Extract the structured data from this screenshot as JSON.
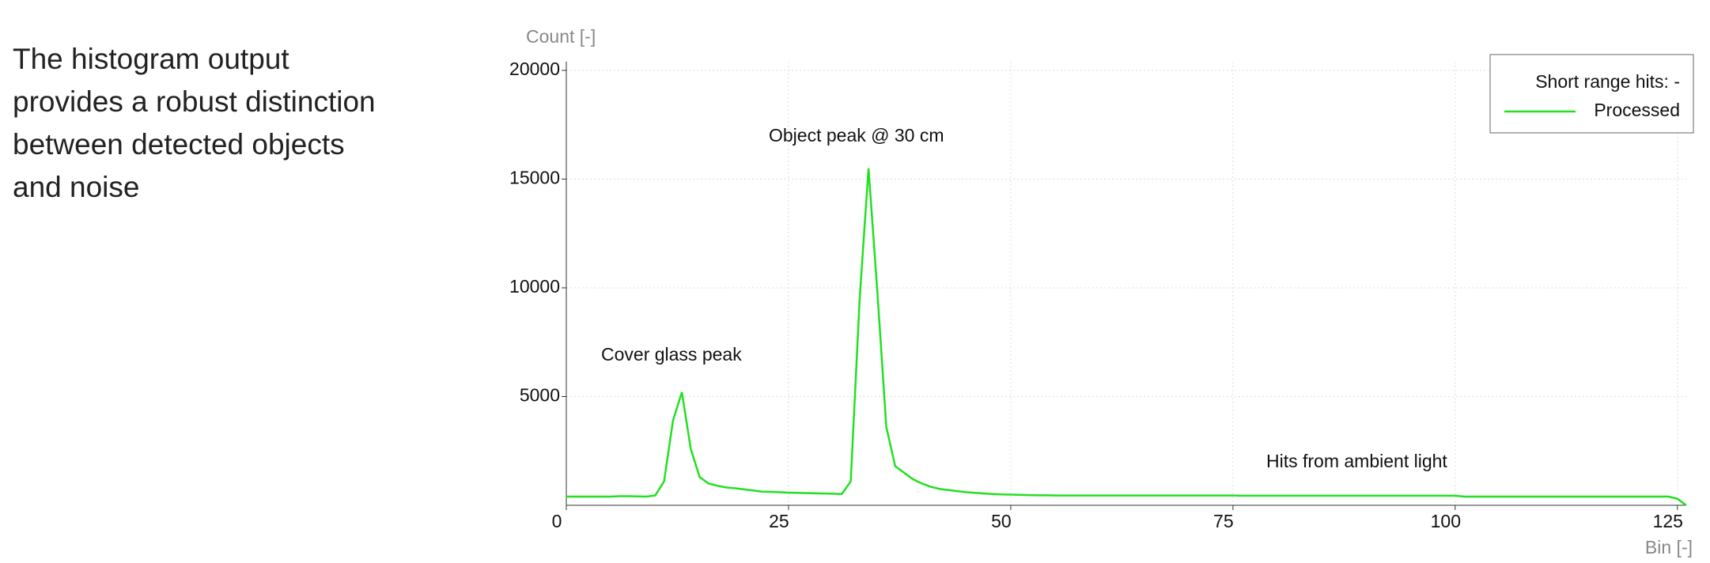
{
  "caption": [
    "The histogram output",
    "provides a robust distinction",
    "between detected objects",
    "and noise"
  ],
  "chart_data": {
    "type": "line",
    "y_label": "Count [-]",
    "x_label": "Bin [-]",
    "legend_title": "Short range hits: -",
    "legend": "upper right",
    "grid": true,
    "annotations": [
      "Cover glass peak",
      "Object peak @ 30 cm",
      "Hits from ambient light"
    ],
    "xlim": [
      0,
      126
    ],
    "xticks": [
      0,
      25,
      50,
      75,
      100,
      125
    ],
    "ylim": [
      0,
      20400
    ],
    "yticks": [
      5000,
      10000,
      15000,
      20000
    ],
    "x": [
      0,
      1,
      2,
      3,
      4,
      5,
      6,
      7,
      8,
      9,
      10,
      11,
      12,
      13,
      14,
      15,
      16,
      17,
      18,
      19,
      20,
      21,
      22,
      23,
      24,
      25,
      26,
      27,
      28,
      29,
      30,
      31,
      32,
      33,
      34,
      35,
      36,
      37,
      38,
      39,
      40,
      41,
      42,
      43,
      44,
      45,
      46,
      47,
      48,
      49,
      50,
      51,
      52,
      53,
      54,
      55,
      56,
      57,
      58,
      59,
      60,
      61,
      62,
      63,
      64,
      65,
      66,
      67,
      68,
      69,
      70,
      71,
      72,
      73,
      74,
      75,
      76,
      77,
      78,
      79,
      80,
      81,
      82,
      83,
      84,
      85,
      86,
      87,
      88,
      89,
      90,
      91,
      92,
      93,
      94,
      95,
      96,
      97,
      98,
      99,
      100,
      101,
      102,
      103,
      104,
      105,
      106,
      107,
      108,
      109,
      110,
      111,
      112,
      113,
      114,
      115,
      116,
      117,
      118,
      119,
      120,
      121,
      122,
      123,
      124,
      125,
      126
    ],
    "series": [
      {
        "name": "Processed",
        "color": "#22e022",
        "values": [
          400,
          400,
          400,
          400,
          400,
          400,
          420,
          420,
          410,
          400,
          450,
          1100,
          3900,
          5200,
          2600,
          1300,
          1000,
          900,
          820,
          780,
          730,
          680,
          630,
          620,
          600,
          580,
          570,
          560,
          550,
          540,
          530,
          520,
          1100,
          9500,
          15500,
          9800,
          3600,
          1800,
          1500,
          1200,
          1000,
          850,
          750,
          700,
          650,
          600,
          570,
          540,
          520,
          500,
          490,
          480,
          470,
          460,
          460,
          450,
          450,
          450,
          450,
          450,
          450,
          450,
          450,
          450,
          450,
          450,
          450,
          450,
          450,
          450,
          450,
          450,
          450,
          450,
          450,
          450,
          440,
          440,
          440,
          440,
          440,
          440,
          440,
          440,
          440,
          440,
          440,
          440,
          440,
          440,
          440,
          440,
          440,
          440,
          440,
          440,
          440,
          440,
          440,
          440,
          440,
          400,
          400,
          400,
          400,
          400,
          400,
          400,
          400,
          400,
          400,
          400,
          400,
          400,
          400,
          400,
          400,
          400,
          400,
          400,
          400,
          400,
          400,
          400,
          400,
          300,
          0
        ]
      }
    ]
  }
}
